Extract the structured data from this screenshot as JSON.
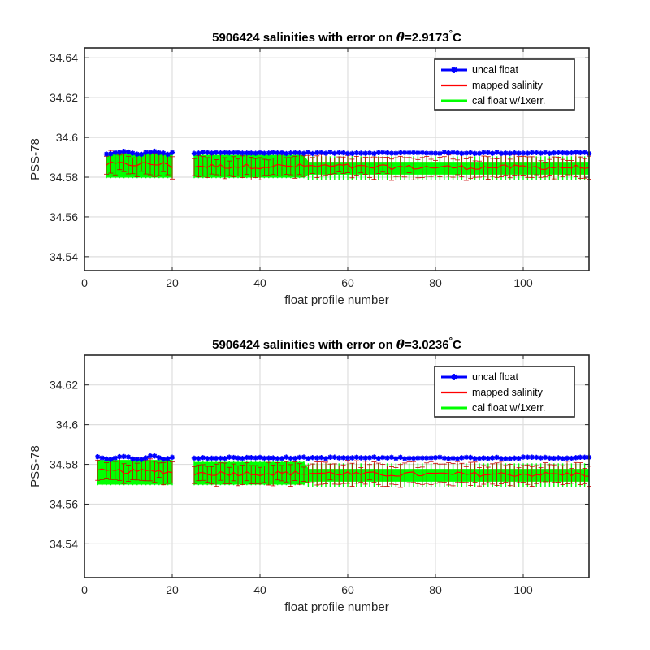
{
  "colors": {
    "uncal": "#0000ff",
    "mapped": "#ff0000",
    "errbar": "#cc0000",
    "cal": "#00ff00",
    "grid": "#dedede",
    "axis": "#262626"
  },
  "chart_data": [
    {
      "type": "line",
      "title_prefix": "5906424 salinities with error on ",
      "title_symbol": "θ",
      "title_value": "=2.9173",
      "title_degree": "°",
      "title_unit": "C",
      "xlabel": "float profile number",
      "ylabel": "PSS-78",
      "xlim": [
        0,
        115
      ],
      "ylim": [
        34.533,
        34.645
      ],
      "xticks": [
        0,
        20,
        40,
        60,
        80,
        100
      ],
      "xtick_labels": [
        "0",
        "20",
        "40",
        "60",
        "80",
        "100"
      ],
      "yticks": [
        34.54,
        34.56,
        34.58,
        34.6,
        34.62,
        34.64
      ],
      "ytick_labels": [
        "34.54",
        "34.56",
        "34.58",
        "34.6",
        "34.62",
        "34.64"
      ],
      "grid": true,
      "legend": "top-right",
      "legend_entries": [
        "uncal float",
        "mapped salinity",
        "cal float w/1xerr."
      ],
      "x_range": [
        5,
        115
      ],
      "gap": [
        20.5,
        24.5
      ],
      "uncal_mean": 34.5922,
      "uncal_noise": 0.0007,
      "mapped_mean": 34.5855,
      "mapped_noise": 0.0025,
      "error_half": 0.0045,
      "cal_band": [
        34.58,
        34.591
      ]
    },
    {
      "type": "line",
      "title_prefix": "5906424 salinities with error on ",
      "title_symbol": "θ",
      "title_value": "=3.0236",
      "title_degree": "°",
      "title_unit": "C",
      "xlabel": "float profile number",
      "ylabel": "PSS-78",
      "xlim": [
        0,
        115
      ],
      "ylim": [
        34.523,
        34.635
      ],
      "xticks": [
        0,
        20,
        40,
        60,
        80,
        100
      ],
      "xtick_labels": [
        "0",
        "20",
        "40",
        "60",
        "80",
        "100"
      ],
      "yticks": [
        34.54,
        34.56,
        34.58,
        34.6,
        34.62
      ],
      "ytick_labels": [
        "34.54",
        "34.56",
        "34.58",
        "34.6",
        "34.62"
      ],
      "grid": true,
      "legend": "top-right",
      "legend_entries": [
        "uncal float",
        "mapped salinity",
        "cal float w/1xerr."
      ],
      "x_range": [
        3,
        115
      ],
      "gap": [
        20.5,
        24.5
      ],
      "uncal_mean": 34.5833,
      "uncal_noise": 0.0008,
      "mapped_mean": 34.5755,
      "mapped_noise": 0.0025,
      "error_half": 0.0045,
      "cal_band": [
        34.57,
        34.581
      ]
    }
  ]
}
